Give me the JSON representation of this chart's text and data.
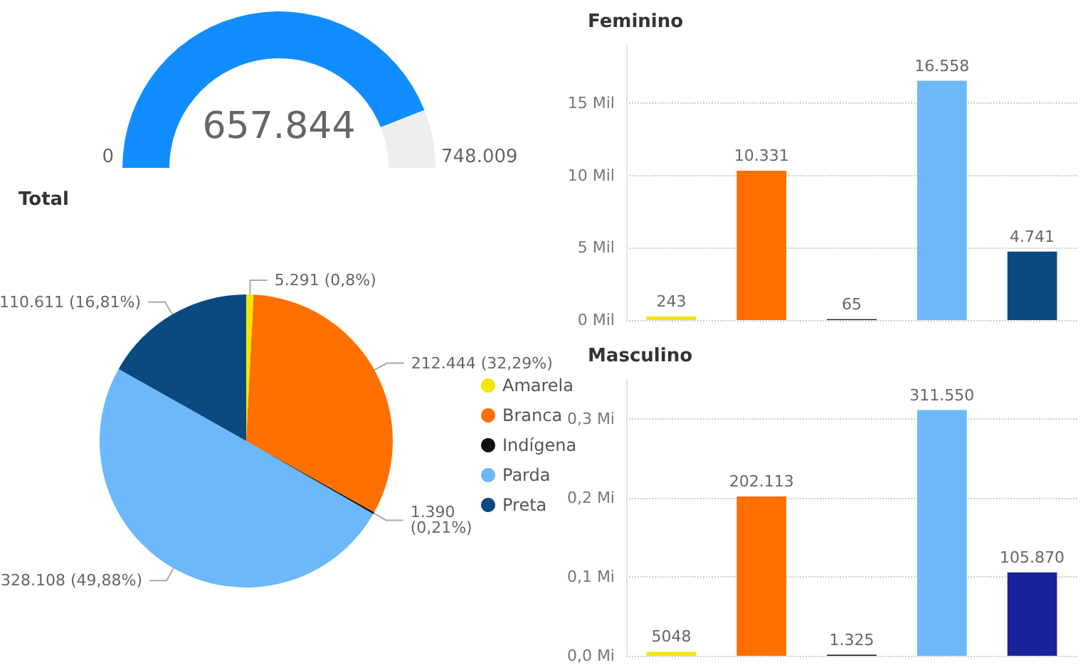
{
  "chart_data": [
    {
      "type": "donut",
      "categories": [
        null,
        null
      ],
      "values": [
        657844,
        90165
      ],
      "colors": [
        "#118dff",
        "#eeeeee"
      ],
      "value_labels": [
        "657.844",
        null
      ],
      "annotations": [
        "0",
        "748.009"
      ]
    },
    {
      "type": "pie",
      "title": "Total",
      "categories": [
        "Amarela",
        "Branca",
        "Indígena",
        "Parda",
        "Preta"
      ],
      "values": [
        5291,
        212444,
        1390,
        328108,
        110611
      ],
      "value_labels": [
        "5.291 (0,8%)",
        "212.444 (32,29%)",
        "1.390\n(0,21%)",
        "328.108 (49,88%)",
        "110.611 (16,81%)"
      ],
      "colors": [
        "#f2e600",
        "#ff7000",
        "#111111",
        "#6cb8fb",
        "#0b4a80"
      ],
      "legend": "right"
    },
    {
      "type": "bar",
      "title": "Feminino",
      "categories": [
        null,
        null,
        null,
        null,
        null
      ],
      "values": [
        0.243,
        10.331,
        0.065,
        16.558,
        4.741
      ],
      "annotations": [
        "243",
        "10.331",
        "65",
        "16.558",
        "4.741"
      ],
      "colors": [
        "#f2e600",
        "#ff7000",
        "#111111",
        "#6cb8fb",
        "#0b4a80"
      ],
      "ylim": [
        0,
        19
      ],
      "yticks": [
        {
          "value": 0,
          "label": "0 Mil"
        },
        {
          "value": 5,
          "label": "5 Mil"
        },
        {
          "value": 10,
          "label": "10 Mil"
        },
        {
          "value": 15,
          "label": "15 Mil"
        }
      ],
      "grid": "y",
      "tick_labels": "y"
    },
    {
      "type": "bar",
      "title": "Masculino",
      "categories": [
        null,
        null,
        null,
        null,
        null
      ],
      "values": [
        0.005048,
        0.202113,
        0.001325,
        0.31155,
        0.10587
      ],
      "annotations": [
        "5048",
        "202.113",
        "1.325",
        "311.550",
        "105.870"
      ],
      "colors": [
        "#f2e600",
        "#ff7000",
        "#111111",
        "#6cb8fb",
        "#1a239a"
      ],
      "ylim": [
        0,
        0.35
      ],
      "yticks": [
        {
          "value": 0,
          "label": "0,0 Mi"
        },
        {
          "value": 0.1,
          "label": "0,1 Mi"
        },
        {
          "value": 0.2,
          "label": "0,2 Mi"
        },
        {
          "value": 0.3,
          "label": "0,3 Mi"
        }
      ],
      "grid": "y",
      "tick_labels": "y"
    }
  ]
}
